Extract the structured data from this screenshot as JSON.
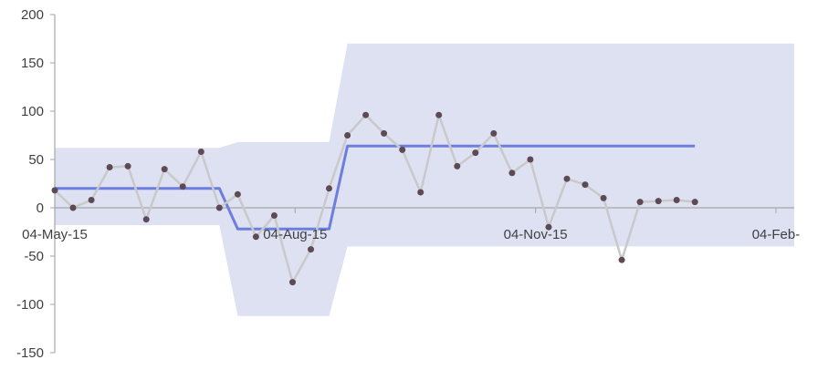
{
  "chart_data": {
    "type": "line",
    "title": "",
    "xlabel": "",
    "ylabel": "",
    "ylim": [
      -150,
      200
    ],
    "yticks": [
      200,
      150,
      100,
      50,
      0,
      -50,
      -100,
      -150
    ],
    "x_tick_labels": [
      "04-May-15",
      "04-Aug-15",
      "04-Nov-15",
      "04-Feb-"
    ],
    "x_tick_dates": [
      "2015-05-04",
      "2015-08-04",
      "2015-11-04",
      "2016-02-04"
    ],
    "xlim": [
      "2015-05-04",
      "2016-02-11"
    ],
    "grid": false,
    "legend": "none",
    "colors": {
      "band": "#dde1f2",
      "mean_line": "#6c7ede",
      "data_line": "#c9c9c9",
      "points": "#5e4a55",
      "axis": "#a6a6a6",
      "tick_text": "#404040"
    },
    "band": [
      {
        "x": "2015-05-04",
        "upper": 62,
        "lower": -18
      },
      {
        "x": "2015-07-06",
        "upper": 62,
        "lower": -18
      },
      {
        "x": "2015-07-13",
        "upper": 68,
        "lower": -112
      },
      {
        "x": "2015-08-17",
        "upper": 68,
        "lower": -112
      },
      {
        "x": "2015-08-24",
        "upper": 170,
        "lower": -40
      },
      {
        "x": "2016-02-11",
        "upper": 170,
        "lower": -40
      }
    ],
    "mean_line": [
      {
        "x": "2015-05-04",
        "y": 20
      },
      {
        "x": "2015-07-06",
        "y": 20
      },
      {
        "x": "2015-07-13",
        "y": -22
      },
      {
        "x": "2015-08-17",
        "y": -22
      },
      {
        "x": "2015-08-24",
        "y": 64
      },
      {
        "x": "2016-01-04",
        "y": 64
      }
    ],
    "series": [
      {
        "x": [
          "2015-05-04",
          "2015-05-11",
          "2015-05-18",
          "2015-05-25",
          "2015-06-01",
          "2015-06-08",
          "2015-06-15",
          "2015-06-22",
          "2015-06-29",
          "2015-07-06",
          "2015-07-13",
          "2015-07-20",
          "2015-07-27",
          "2015-08-03",
          "2015-08-10",
          "2015-08-17",
          "2015-08-24",
          "2015-08-31",
          "2015-09-07",
          "2015-09-14",
          "2015-09-21",
          "2015-09-28",
          "2015-10-05",
          "2015-10-12",
          "2015-10-19",
          "2015-10-26",
          "2015-11-02",
          "2015-11-09",
          "2015-11-16",
          "2015-11-23",
          "2015-11-30",
          "2015-12-07",
          "2015-12-14",
          "2015-12-21",
          "2015-12-28",
          "2016-01-04"
        ],
        "values": [
          18,
          0,
          8,
          42,
          43,
          -12,
          40,
          22,
          58,
          0,
          14,
          -30,
          -8,
          -77,
          -43,
          20,
          75,
          96,
          77,
          60,
          16,
          96,
          43,
          57,
          77,
          36,
          50,
          -20,
          30,
          24,
          10,
          -54,
          6,
          7,
          8,
          6
        ]
      }
    ]
  }
}
